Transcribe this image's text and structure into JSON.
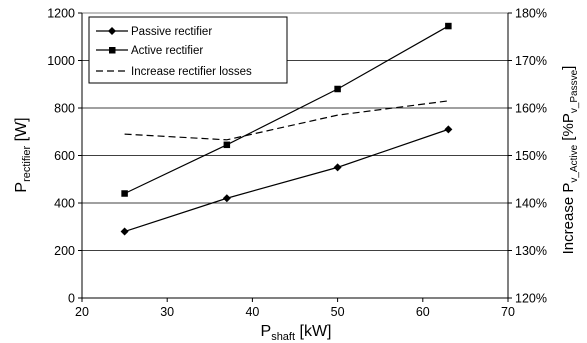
{
  "chart_data": {
    "type": "line",
    "x_axis": {
      "label_main": "P",
      "label_sub": "shaft",
      "label_unit": " [kW]",
      "range": [
        20,
        70
      ],
      "ticks": [
        "20",
        "30",
        "40",
        "50",
        "60",
        "70"
      ]
    },
    "y_axis_left": {
      "label_main": "P",
      "label_sub": "rectifier",
      "label_unit": " [W]",
      "range": [
        0,
        1200
      ],
      "ticks": [
        "0",
        "200",
        "400",
        "600",
        "800",
        "1000",
        "1200"
      ]
    },
    "y_axis_right": {
      "label_prefix": "Increase P",
      "label_sub": "v_Active",
      "label_mid": " [%P",
      "label_sub2": "v_Passve",
      "label_end": "]",
      "range": [
        120,
        180
      ],
      "ticks": [
        "120%",
        "130%",
        "140%",
        "150%",
        "160%",
        "170%",
        "180%"
      ]
    },
    "grid": "horizontal",
    "legend_position": "top-left",
    "series": [
      {
        "name": "Passive rectifier",
        "axis": "left",
        "marker": "diamond",
        "line": "solid",
        "x": [
          25,
          37,
          50,
          63
        ],
        "y": [
          280,
          420,
          550,
          710
        ]
      },
      {
        "name": "Active rectifier",
        "axis": "left",
        "marker": "square",
        "line": "solid",
        "x": [
          25,
          37,
          50,
          63
        ],
        "y": [
          440,
          645,
          880,
          1145
        ]
      },
      {
        "name": "Increase rectifier losses",
        "axis": "right",
        "marker": "none",
        "line": "dashed",
        "x": [
          25,
          37,
          50,
          63
        ],
        "y": [
          154.5,
          153.3,
          158.5,
          161.5
        ]
      }
    ]
  }
}
